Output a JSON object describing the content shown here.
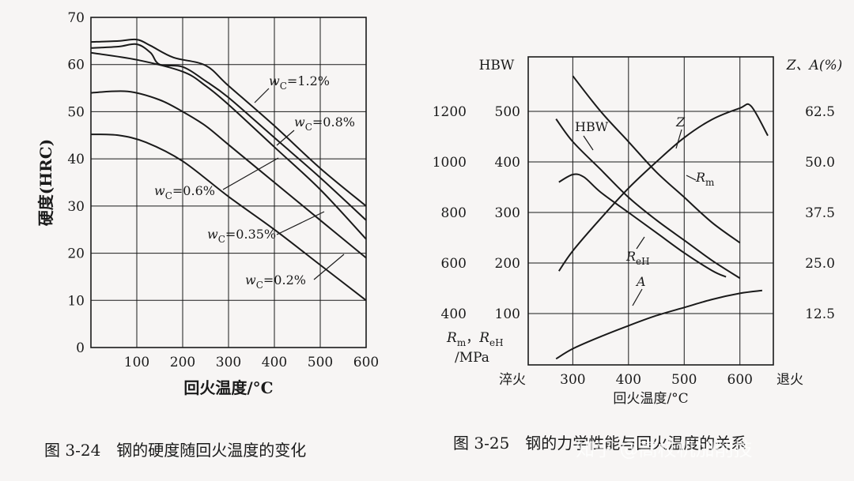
{
  "accent": "#1a1a1a",
  "watermark": "知乎 @高校机加削技",
  "chart_data": [
    {
      "type": "line",
      "caption": "图 3-24　钢的硬度随回火温度的变化",
      "ylabel": "硬度(HRC)",
      "xlabel": "回火温度/°C",
      "xlim": [
        0,
        600
      ],
      "ylim": [
        0,
        70
      ],
      "xticks": [
        "100",
        "200",
        "300",
        "400",
        "500",
        "600"
      ],
      "yticks": [
        "0",
        "10",
        "20",
        "30",
        "40",
        "50",
        "60",
        "70"
      ],
      "grid": true,
      "series": [
        {
          "name": "wC=1.2%",
          "x": [
            0,
            60,
            100,
            130,
            180,
            250,
            300,
            400,
            500,
            600
          ],
          "y": [
            64.8,
            65.0,
            65.3,
            64.0,
            61.5,
            59.8,
            55.5,
            47,
            38,
            30
          ]
        },
        {
          "name": "wC=0.8%",
          "x": [
            0,
            60,
            100,
            130,
            150,
            200,
            250,
            300,
            400,
            500,
            600
          ],
          "y": [
            63.5,
            63.8,
            64.3,
            62.5,
            60.0,
            59.5,
            56.5,
            53,
            44.5,
            36,
            27
          ]
        },
        {
          "name": "wC=0.6%",
          "x": [
            0,
            100,
            200,
            250,
            300,
            400,
            500,
            600
          ],
          "y": [
            62.5,
            61.0,
            58.5,
            55.5,
            51.5,
            42.5,
            33.5,
            23
          ]
        },
        {
          "name": "wC=0.35%",
          "x": [
            0,
            80,
            150,
            200,
            250,
            300,
            400,
            500,
            600
          ],
          "y": [
            54,
            54.3,
            52.5,
            50,
            47,
            43,
            35,
            27,
            19
          ]
        },
        {
          "name": "wC=0.2%",
          "x": [
            0,
            60,
            120,
            200,
            300,
            400,
            500,
            600
          ],
          "y": [
            45.2,
            45,
            43.5,
            39.5,
            32,
            25,
            17.5,
            10
          ]
        }
      ],
      "labels": [
        {
          "main": "w",
          "sub": "C",
          "rest": "=1.2%"
        },
        {
          "main": "w",
          "sub": "C",
          "rest": "=0.8%"
        },
        {
          "main": "w",
          "sub": "C",
          "rest": "=0.6%"
        },
        {
          "main": "w",
          "sub": "C",
          "rest": "=0.35%"
        },
        {
          "main": "w",
          "sub": "C",
          "rest": "=0.2%"
        }
      ]
    },
    {
      "type": "line",
      "caption": "图 3-25　钢的力学性能与回火温度的关系",
      "xlabel": "回火温度/°C",
      "xlim": [
        220,
        660
      ],
      "xticks": [
        "300",
        "400",
        "500",
        "600"
      ],
      "x_end_labels": {
        "left": "淬火",
        "right": "退火"
      },
      "axes": {
        "HBW": {
          "label": "HBW",
          "ticks": [
            "100",
            "200",
            "300",
            "400",
            "500"
          ],
          "range": [
            0,
            500
          ]
        },
        "Rm_ReH": {
          "label_main": "R",
          "label_sub1": "m",
          "label_sep": "，R",
          "label_sub2": "eH",
          "unit": "/MPa",
          "ticks": [
            "400",
            "600",
            "800",
            "1000",
            "1200"
          ],
          "range": [
            200,
            1200
          ]
        },
        "ZA": {
          "label": "Z、A(%)",
          "ticks": [
            "12.5",
            "25.0",
            "37.5",
            "50.0",
            "62.5"
          ],
          "range": [
            0,
            62.5
          ]
        }
      },
      "grid": true,
      "series": [
        {
          "name": "HBW",
          "axis": "HBW",
          "x": [
            270,
            300,
            350,
            400,
            450,
            500,
            550,
            600
          ],
          "y": [
            485,
            440,
            385,
            330,
            285,
            245,
            205,
            170
          ]
        },
        {
          "name": "Rm",
          "axis": "Rm_ReH",
          "x": [
            300,
            350,
            400,
            450,
            500,
            550,
            600
          ],
          "y": [
            1340,
            1200,
            1080,
            960,
            860,
            760,
            680
          ]
        },
        {
          "name": "ReH",
          "axis": "Rm_ReH",
          "x": [
            275,
            300,
            320,
            350,
            400,
            450,
            500,
            550,
            575
          ],
          "y": [
            920,
            950,
            940,
            880,
            800,
            720,
            640,
            570,
            545
          ]
        },
        {
          "name": "Z",
          "axis": "ZA",
          "x": [
            275,
            300,
            350,
            400,
            450,
            500,
            550,
            600,
            620,
            650
          ],
          "y": [
            23,
            28,
            36,
            43.5,
            50,
            56,
            60.5,
            63.3,
            63.8,
            56.5
          ]
        },
        {
          "name": "A",
          "axis": "ZA",
          "x": [
            270,
            300,
            350,
            400,
            450,
            500,
            550,
            600,
            640
          ],
          "y": [
            1.3,
            3.8,
            6.8,
            9.5,
            12,
            14,
            16,
            17.5,
            18.2
          ]
        }
      ],
      "labels": [
        {
          "main": "HBW",
          "sub": ""
        },
        {
          "main": "R",
          "sub": "m"
        },
        {
          "main": "R",
          "sub": "eH"
        },
        {
          "main": "Z",
          "sub": ""
        },
        {
          "main": "A",
          "sub": ""
        }
      ]
    }
  ]
}
